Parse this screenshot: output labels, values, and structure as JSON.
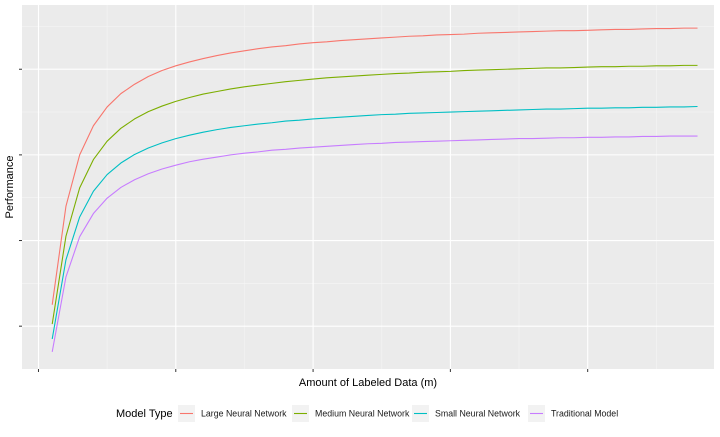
{
  "chart_data": {
    "type": "line",
    "title": "",
    "xlabel": "Amount of Labeled Data (m)",
    "ylabel": "Performance",
    "x_tick_labels_shown": false,
    "y_tick_labels_shown": false,
    "grid": true,
    "theme": "ggplot2 grey",
    "xlim": [
      -1.2,
      49.2
    ],
    "ylim": [
      0,
      0.85
    ],
    "legend": {
      "title": "Model Type",
      "position": "bottom"
    },
    "x": [
      1,
      2,
      3,
      4,
      5,
      6,
      7,
      8,
      9,
      10,
      11,
      12,
      13,
      14,
      15,
      16,
      17,
      18,
      19,
      20,
      21,
      22,
      23,
      24,
      25,
      26,
      27,
      28,
      29,
      30,
      31,
      32,
      33,
      34,
      35,
      36,
      37,
      38,
      39,
      40,
      41,
      42,
      43,
      44,
      45,
      46,
      47,
      48
    ],
    "series": [
      {
        "name": "Large Neural Network",
        "color": "#F8766D",
        "values": [
          0.15,
          0.38,
          0.5,
          0.568,
          0.612,
          0.643,
          0.665,
          0.683,
          0.697,
          0.708,
          0.717,
          0.725,
          0.732,
          0.738,
          0.743,
          0.748,
          0.752,
          0.755,
          0.759,
          0.762,
          0.764,
          0.767,
          0.769,
          0.771,
          0.773,
          0.775,
          0.777,
          0.778,
          0.78,
          0.781,
          0.782,
          0.784,
          0.785,
          0.786,
          0.787,
          0.788,
          0.789,
          0.79,
          0.79,
          0.791,
          0.792,
          0.793,
          0.793,
          0.794,
          0.795,
          0.795,
          0.796,
          0.796
        ]
      },
      {
        "name": "Medium Neural Network",
        "color": "#7CAE00",
        "values": [
          0.105,
          0.31,
          0.423,
          0.489,
          0.532,
          0.562,
          0.584,
          0.601,
          0.614,
          0.625,
          0.634,
          0.642,
          0.648,
          0.654,
          0.659,
          0.663,
          0.667,
          0.671,
          0.674,
          0.677,
          0.68,
          0.682,
          0.684,
          0.686,
          0.688,
          0.69,
          0.691,
          0.693,
          0.694,
          0.695,
          0.697,
          0.698,
          0.699,
          0.7,
          0.701,
          0.702,
          0.703,
          0.703,
          0.704,
          0.705,
          0.706,
          0.706,
          0.707,
          0.707,
          0.708,
          0.708,
          0.709,
          0.709
        ]
      },
      {
        "name": "Small Neural Network",
        "color": "#00BFC4",
        "values": [
          0.07,
          0.255,
          0.355,
          0.415,
          0.454,
          0.481,
          0.501,
          0.516,
          0.528,
          0.538,
          0.546,
          0.553,
          0.559,
          0.564,
          0.568,
          0.572,
          0.575,
          0.579,
          0.581,
          0.584,
          0.586,
          0.588,
          0.59,
          0.592,
          0.594,
          0.595,
          0.597,
          0.598,
          0.599,
          0.6,
          0.601,
          0.602,
          0.603,
          0.604,
          0.605,
          0.606,
          0.607,
          0.607,
          0.608,
          0.609,
          0.609,
          0.61,
          0.61,
          0.611,
          0.611,
          0.612,
          0.612,
          0.613
        ]
      },
      {
        "name": "Traditional Model",
        "color": "#C77CFF",
        "values": [
          0.04,
          0.215,
          0.309,
          0.363,
          0.399,
          0.424,
          0.442,
          0.456,
          0.467,
          0.476,
          0.484,
          0.49,
          0.495,
          0.5,
          0.504,
          0.507,
          0.511,
          0.513,
          0.516,
          0.518,
          0.52,
          0.522,
          0.524,
          0.526,
          0.527,
          0.529,
          0.53,
          0.531,
          0.532,
          0.533,
          0.534,
          0.535,
          0.536,
          0.537,
          0.538,
          0.538,
          0.539,
          0.54,
          0.54,
          0.541,
          0.541,
          0.542,
          0.542,
          0.543,
          0.543,
          0.544,
          0.544,
          0.544
        ]
      }
    ]
  }
}
